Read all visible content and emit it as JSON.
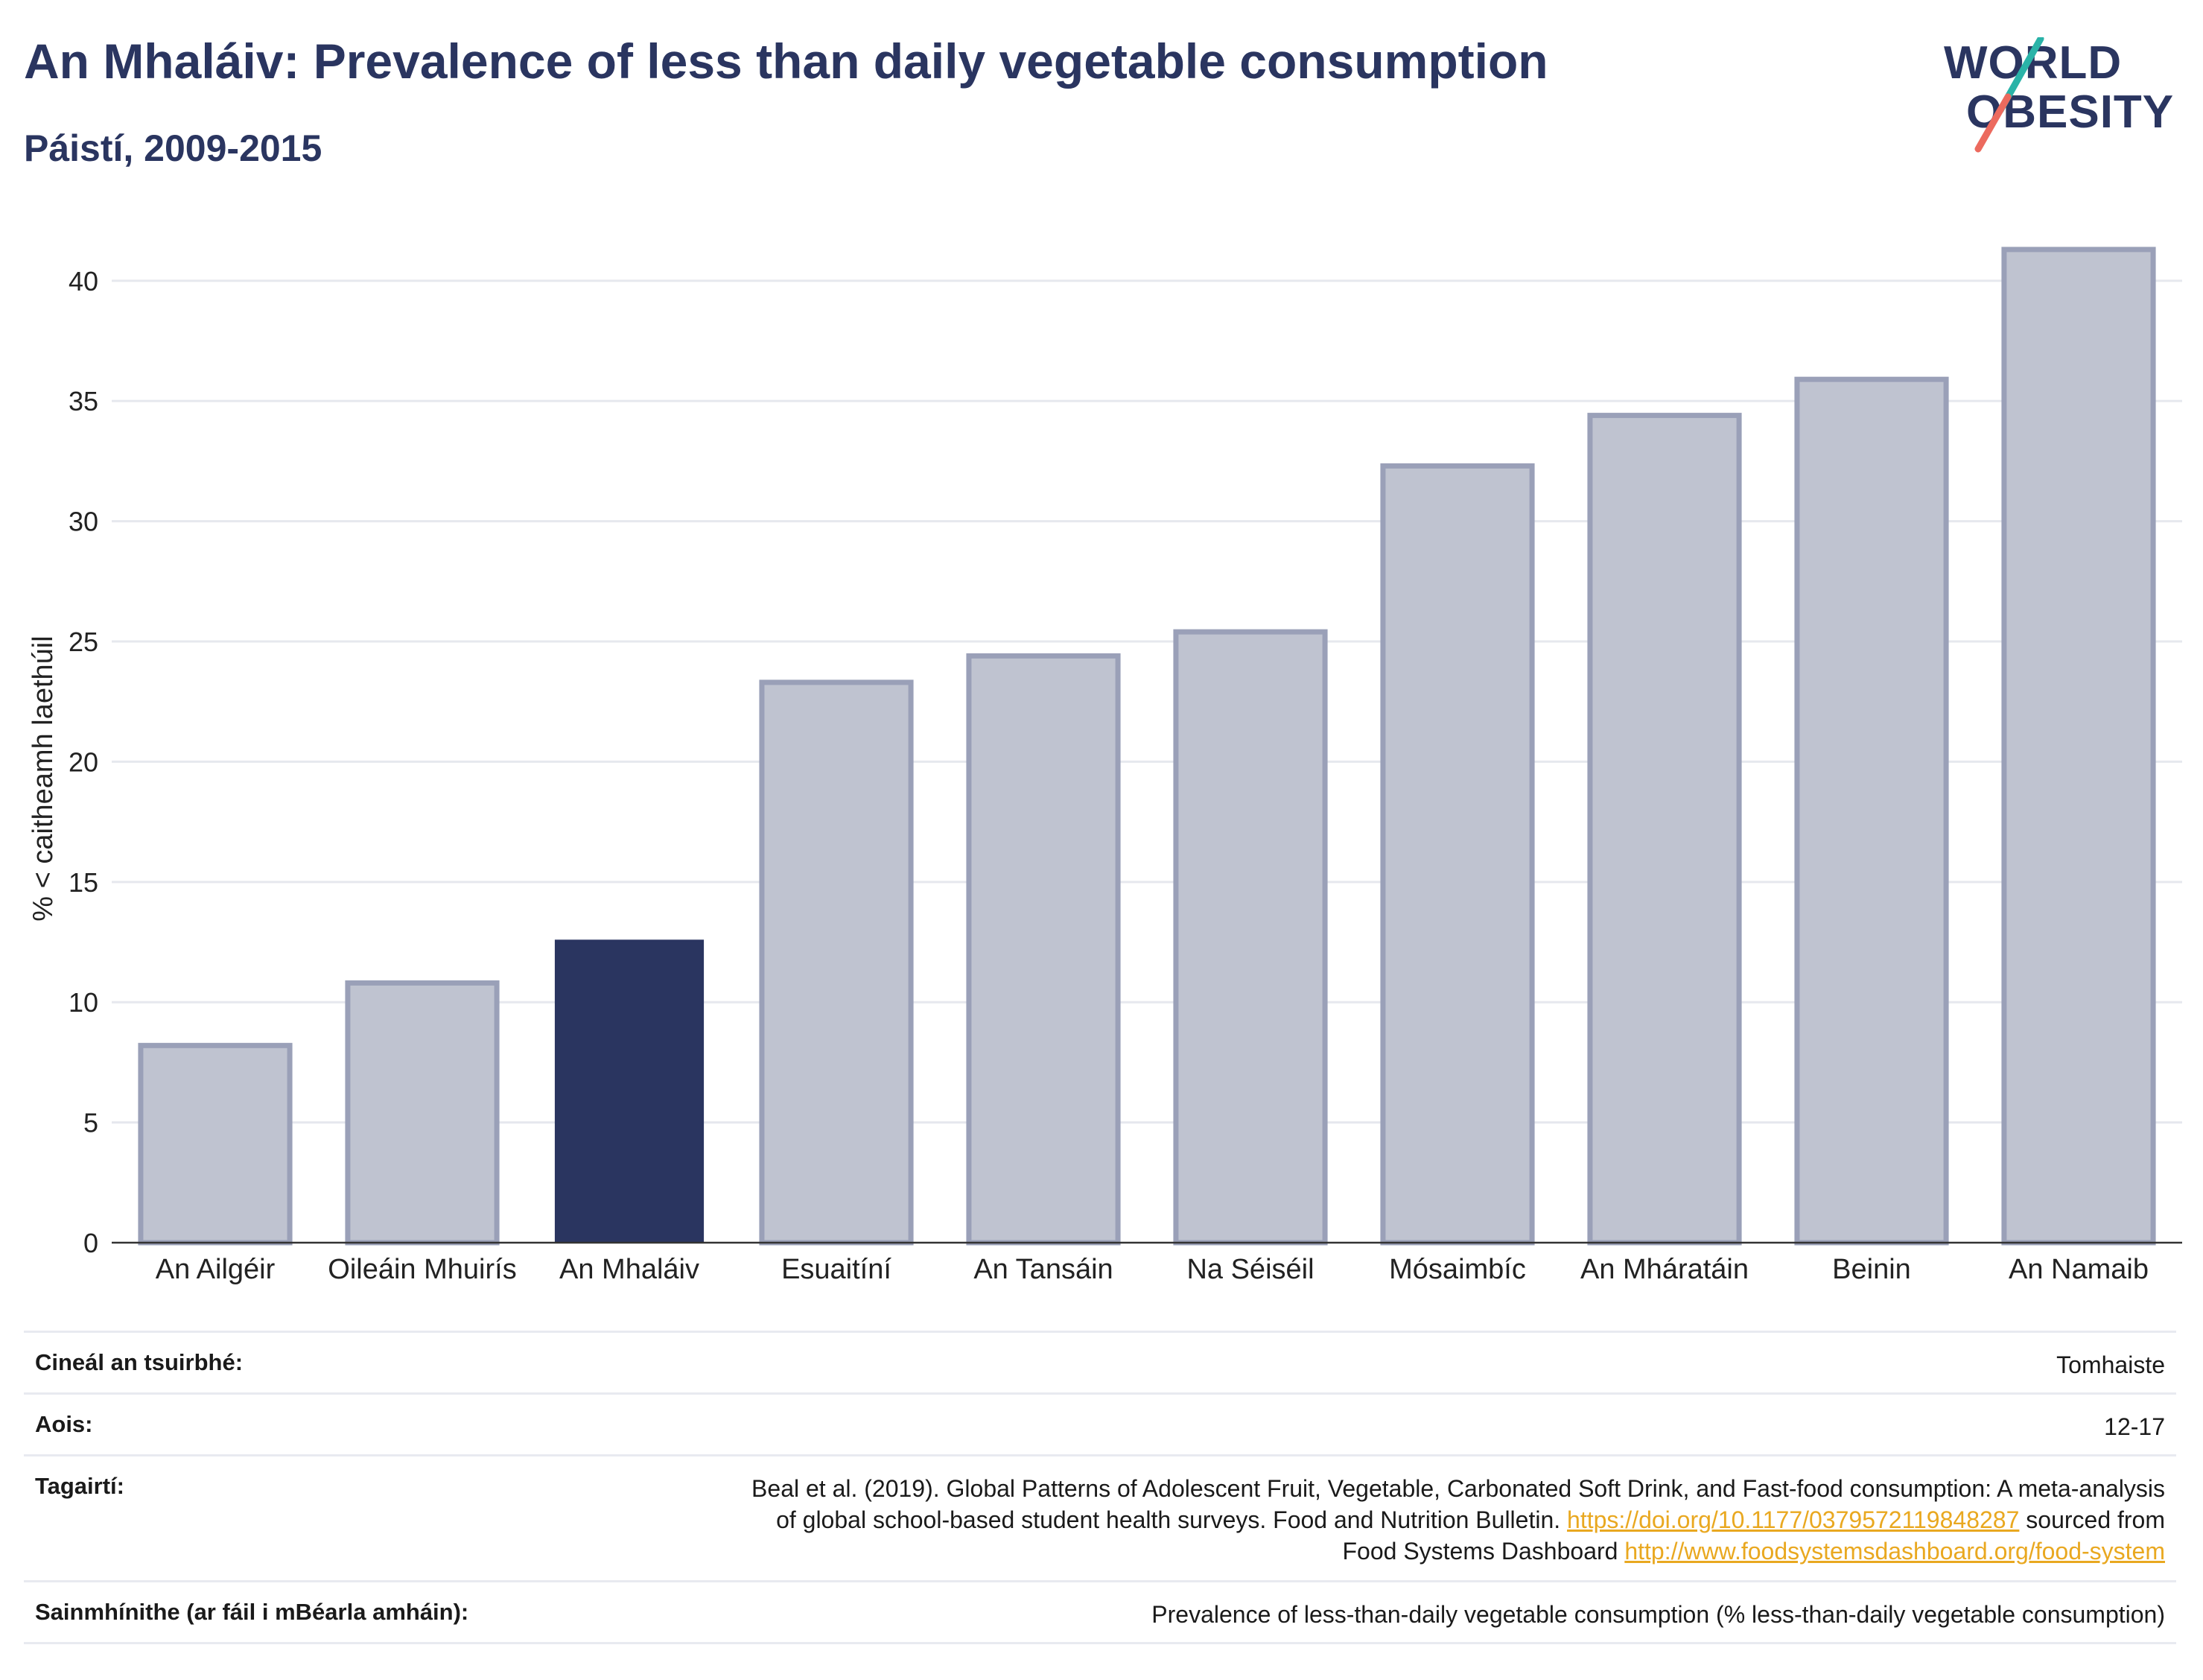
{
  "header": {
    "title": "An Mhaláiv: Prevalence of less than daily vegetable consumption",
    "subtitle": "Páistí, 2009-2015"
  },
  "logo": {
    "line1": "WORLD",
    "line2": "OBESITY"
  },
  "colors": {
    "highlight": "#2a3560",
    "bar": "#bfc3d0",
    "bar_outline": "#9aa0b8",
    "text": "#2a3560",
    "link": "#e9a820",
    "grid": "#e6e8ee"
  },
  "chart_data": {
    "type": "bar",
    "categories": [
      "An Ailgéir",
      "Oileáin Mhuirís",
      "An Mhaláiv",
      "Esuaitíní",
      "An Tansáin",
      "Na Séiséil",
      "Mósaimbíc",
      "An Mháratáin",
      "Beinin",
      "An Namaib"
    ],
    "values": [
      8.2,
      10.8,
      12.6,
      23.3,
      24.4,
      25.4,
      32.3,
      34.4,
      35.9,
      41.3
    ],
    "highlight": "An Mhaláiv",
    "ylabel": "% < caitheamh laethúil",
    "ylim": [
      0,
      43
    ],
    "yticks": [
      0,
      5,
      10,
      15,
      20,
      25,
      30,
      35,
      40
    ],
    "grid": true
  },
  "info": {
    "survey_label": "Cineál an tsuirbhé:",
    "survey_value": "Tomhaiste",
    "age_label": "Aois:",
    "age_value": "12-17",
    "ref_label": "Tagairtí:",
    "ref_line1": "Beal et al. (2019). Global Patterns of Adolescent Fruit, Vegetable, Carbonated Soft Drink, and Fast-food consumption: A meta-analysis",
    "ref_line2a": "of global school-based student health surveys. Food and Nutrition Bulletin. ",
    "ref_link1": "https://doi.org/10.1177/0379572119848287",
    "ref_line2b": " sourced from",
    "ref_line3a": "Food Systems Dashboard ",
    "ref_link2": "http://www.foodsystemsdashboard.org/food-system",
    "def_label": "Sainmhínithe (ar fáil i mBéarla amháin):",
    "def_value": "Prevalence of less-than-daily vegetable consumption (% less-than-daily vegetable consumption)"
  }
}
